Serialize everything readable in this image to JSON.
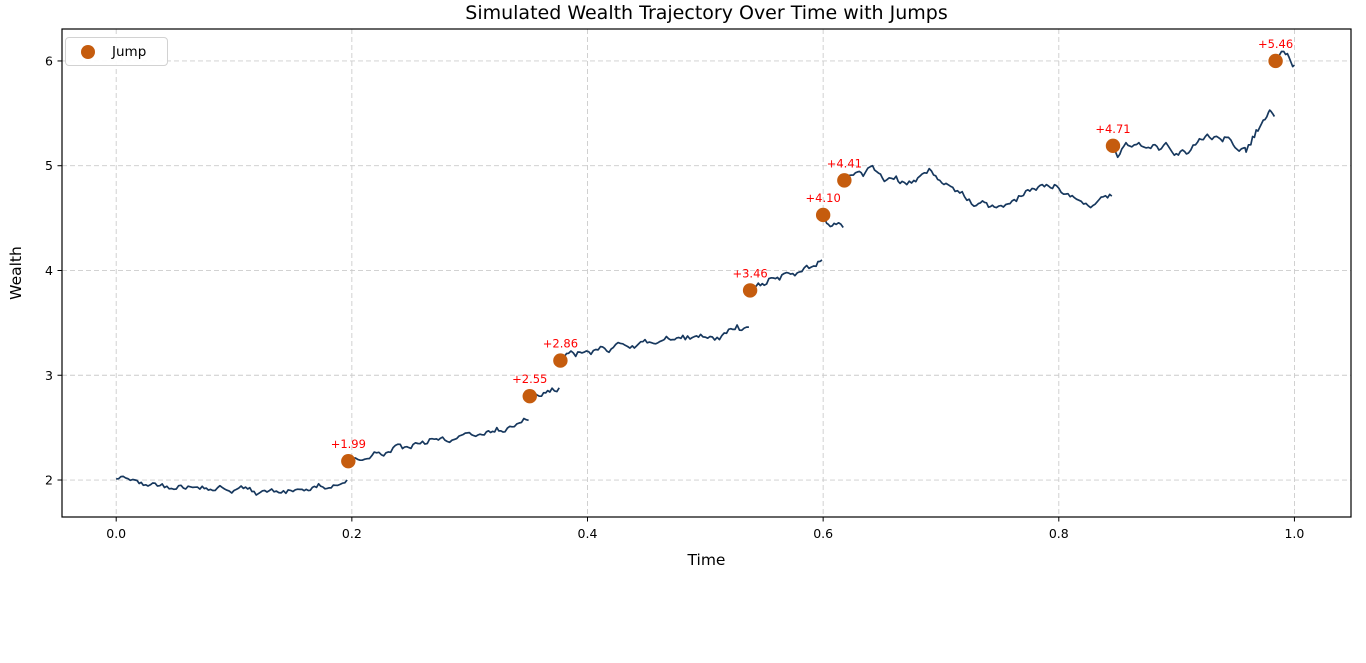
{
  "figure": {
    "kind": "matplotlib-line-figure"
  },
  "colors": {
    "line": "#17385e",
    "jump_marker": "#c55c0e",
    "annotation": "#ff0000",
    "grid": "#cccccc",
    "axis": "#000000",
    "text": "#000000",
    "background": "#ffffff",
    "legend_border": "#d2d2d2"
  },
  "chart_data": {
    "type": "line",
    "title": "Simulated Wealth Trajectory Over Time with Jumps",
    "xlabel": "Time",
    "ylabel": "Wealth",
    "xlim": [
      -0.046,
      1.048
    ],
    "ylim": [
      1.647,
      6.305
    ],
    "x_ticks": {
      "values": [
        0.0,
        0.2,
        0.4,
        0.6,
        0.8,
        1.0
      ],
      "labels": [
        "0.0",
        "0.2",
        "0.4",
        "0.6",
        "0.8",
        "1.0"
      ]
    },
    "y_ticks": {
      "values": [
        2,
        3,
        4,
        5,
        6
      ],
      "labels": [
        "2",
        "3",
        "4",
        "5",
        "6"
      ]
    },
    "grid": {
      "show": true,
      "line_style": "dashed"
    },
    "legend": {
      "label": "Jump",
      "position": "upper left"
    },
    "series": {
      "name": "wealth-trajectory",
      "start_value": 2.0,
      "segments": [
        [
          [
            0.0,
            2.01
          ],
          [
            0.008,
            2.02
          ],
          [
            0.016,
            2.0
          ],
          [
            0.023,
            1.95
          ],
          [
            0.033,
            1.97
          ],
          [
            0.043,
            1.94
          ],
          [
            0.055,
            1.95
          ],
          [
            0.065,
            1.93
          ],
          [
            0.073,
            1.94
          ],
          [
            0.08,
            1.91
          ],
          [
            0.09,
            1.93
          ],
          [
            0.1,
            1.9
          ],
          [
            0.108,
            1.92
          ],
          [
            0.117,
            1.89
          ],
          [
            0.126,
            1.9
          ],
          [
            0.138,
            1.88
          ],
          [
            0.15,
            1.89
          ],
          [
            0.156,
            1.91
          ],
          [
            0.163,
            1.9
          ],
          [
            0.17,
            1.93
          ],
          [
            0.179,
            1.92
          ],
          [
            0.186,
            1.95
          ],
          [
            0.192,
            1.97
          ],
          [
            0.196,
            2.0
          ]
        ],
        [
          [
            0.197,
            2.18
          ],
          [
            0.203,
            2.21
          ],
          [
            0.209,
            2.19
          ],
          [
            0.221,
            2.26
          ],
          [
            0.227,
            2.23
          ],
          [
            0.237,
            2.33
          ],
          [
            0.243,
            2.3
          ],
          [
            0.252,
            2.34
          ],
          [
            0.26,
            2.37
          ],
          [
            0.27,
            2.39
          ],
          [
            0.277,
            2.41
          ],
          [
            0.283,
            2.36
          ],
          [
            0.291,
            2.42
          ],
          [
            0.298,
            2.45
          ],
          [
            0.307,
            2.43
          ],
          [
            0.316,
            2.47
          ],
          [
            0.323,
            2.5
          ],
          [
            0.33,
            2.46
          ],
          [
            0.338,
            2.51
          ],
          [
            0.344,
            2.55
          ],
          [
            0.35,
            2.57
          ]
        ],
        [
          [
            0.351,
            2.8
          ],
          [
            0.355,
            2.83
          ],
          [
            0.361,
            2.8
          ],
          [
            0.368,
            2.84
          ],
          [
            0.376,
            2.88
          ]
        ],
        [
          [
            0.377,
            3.14
          ],
          [
            0.384,
            3.21
          ],
          [
            0.39,
            3.18
          ],
          [
            0.397,
            3.22
          ],
          [
            0.403,
            3.2
          ],
          [
            0.413,
            3.27
          ],
          [
            0.42,
            3.25
          ],
          [
            0.43,
            3.3
          ],
          [
            0.438,
            3.28
          ],
          [
            0.447,
            3.32
          ],
          [
            0.458,
            3.3
          ],
          [
            0.467,
            3.37
          ],
          [
            0.474,
            3.34
          ],
          [
            0.481,
            3.38
          ],
          [
            0.489,
            3.36
          ],
          [
            0.496,
            3.39
          ],
          [
            0.504,
            3.37
          ],
          [
            0.512,
            3.34
          ],
          [
            0.518,
            3.4
          ],
          [
            0.527,
            3.48
          ],
          [
            0.533,
            3.45
          ],
          [
            0.537,
            3.46
          ]
        ],
        [
          [
            0.538,
            3.81
          ],
          [
            0.545,
            3.88
          ],
          [
            0.55,
            3.86
          ],
          [
            0.556,
            3.93
          ],
          [
            0.563,
            3.91
          ],
          [
            0.569,
            3.98
          ],
          [
            0.576,
            3.95
          ],
          [
            0.582,
            3.99
          ],
          [
            0.588,
            4.02
          ],
          [
            0.594,
            4.04
          ],
          [
            0.599,
            4.1
          ]
        ],
        [
          [
            0.6,
            4.53
          ],
          [
            0.603,
            4.45
          ],
          [
            0.606,
            4.42
          ],
          [
            0.611,
            4.44
          ],
          [
            0.617,
            4.41
          ]
        ],
        [
          [
            0.618,
            4.86
          ],
          [
            0.624,
            4.91
          ],
          [
            0.629,
            4.94
          ],
          [
            0.634,
            4.9
          ],
          [
            0.642,
            5.0
          ],
          [
            0.647,
            4.93
          ],
          [
            0.652,
            4.85
          ],
          [
            0.658,
            4.88
          ],
          [
            0.662,
            4.9
          ],
          [
            0.667,
            4.85
          ],
          [
            0.671,
            4.82
          ],
          [
            0.677,
            4.86
          ],
          [
            0.682,
            4.9
          ],
          [
            0.688,
            4.93
          ],
          [
            0.692,
            4.95
          ],
          [
            0.699,
            4.86
          ],
          [
            0.706,
            4.82
          ],
          [
            0.716,
            4.74
          ],
          [
            0.724,
            4.68
          ],
          [
            0.73,
            4.62
          ],
          [
            0.737,
            4.65
          ],
          [
            0.742,
            4.61
          ],
          [
            0.747,
            4.6
          ],
          [
            0.755,
            4.63
          ],
          [
            0.764,
            4.66
          ],
          [
            0.772,
            4.76
          ],
          [
            0.779,
            4.78
          ],
          [
            0.786,
            4.82
          ],
          [
            0.793,
            4.79
          ],
          [
            0.798,
            4.81
          ],
          [
            0.806,
            4.73
          ],
          [
            0.815,
            4.68
          ],
          [
            0.823,
            4.64
          ],
          [
            0.829,
            4.62
          ],
          [
            0.836,
            4.7
          ],
          [
            0.845,
            4.71
          ]
        ],
        [
          [
            0.846,
            5.19
          ],
          [
            0.85,
            5.08
          ],
          [
            0.857,
            5.22
          ],
          [
            0.862,
            5.18
          ],
          [
            0.868,
            5.22
          ],
          [
            0.874,
            5.17
          ],
          [
            0.88,
            5.2
          ],
          [
            0.885,
            5.15
          ],
          [
            0.891,
            5.22
          ],
          [
            0.898,
            5.1
          ],
          [
            0.905,
            5.15
          ],
          [
            0.91,
            5.12
          ],
          [
            0.916,
            5.2
          ],
          [
            0.921,
            5.25
          ],
          [
            0.926,
            5.3
          ],
          [
            0.93,
            5.25
          ],
          [
            0.934,
            5.28
          ],
          [
            0.939,
            5.23
          ],
          [
            0.944,
            5.27
          ],
          [
            0.948,
            5.2
          ],
          [
            0.953,
            5.14
          ],
          [
            0.957,
            5.17
          ],
          [
            0.959,
            5.13
          ],
          [
            0.963,
            5.2
          ],
          [
            0.966,
            5.27
          ],
          [
            0.969,
            5.33
          ],
          [
            0.972,
            5.4
          ],
          [
            0.975,
            5.44
          ],
          [
            0.978,
            5.51
          ],
          [
            0.98,
            5.52
          ],
          [
            0.983,
            5.47
          ]
        ],
        [
          [
            0.984,
            6.0
          ],
          [
            0.987,
            6.05
          ],
          [
            0.991,
            6.09
          ],
          [
            0.994,
            6.07
          ],
          [
            0.997,
            5.99
          ],
          [
            1.0,
            5.96
          ]
        ]
      ]
    },
    "jumps": [
      {
        "t": 0.197,
        "wealth": 2.18,
        "label": "+1.99"
      },
      {
        "t": 0.351,
        "wealth": 2.8,
        "label": "+2.55"
      },
      {
        "t": 0.377,
        "wealth": 3.14,
        "label": "+2.86"
      },
      {
        "t": 0.538,
        "wealth": 3.81,
        "label": "+3.46"
      },
      {
        "t": 0.6,
        "wealth": 4.53,
        "label": "+4.10"
      },
      {
        "t": 0.618,
        "wealth": 4.86,
        "label": "+4.41"
      },
      {
        "t": 0.846,
        "wealth": 5.19,
        "label": "+4.71"
      },
      {
        "t": 0.984,
        "wealth": 6.0,
        "label": "+5.46"
      }
    ]
  }
}
